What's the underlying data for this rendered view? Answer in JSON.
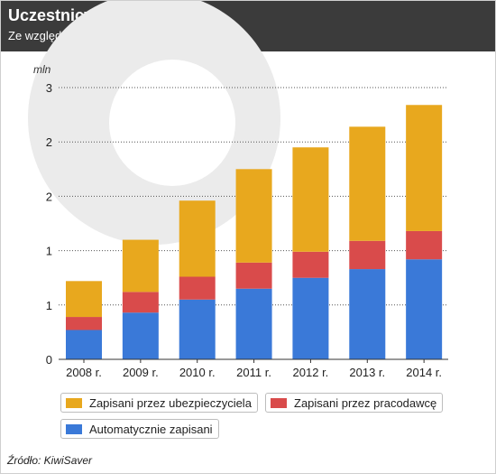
{
  "header": {
    "title": "Uczestnicy KiwiSaver",
    "subtitle": "Ze względu na sposób dołączenia"
  },
  "colors": {
    "header_bg": "#3b3b3b",
    "watermark": "#ebebeb",
    "insurer": "#e8a81e",
    "employer": "#d94b4b",
    "auto": "#3a79d8"
  },
  "chart_data": {
    "type": "bar",
    "stacked": true,
    "unit_label": "mln",
    "categories": [
      "2008 r.",
      "2009 r.",
      "2010 r.",
      "2011 r.",
      "2012 r.",
      "2013 r.",
      "2014 r."
    ],
    "y_ticks": [
      "0",
      "1",
      "1",
      "2",
      "2",
      "3"
    ],
    "ylim": [
      0,
      2.5
    ],
    "grid": true,
    "legend_position": "bottom",
    "series": [
      {
        "name": "Automatycznie zapisani",
        "color": "#3a79d8",
        "values": [
          0.27,
          0.43,
          0.55,
          0.65,
          0.75,
          0.83,
          0.92
        ]
      },
      {
        "name": "Zapisani przez pracodawcę",
        "color": "#d94b4b",
        "values": [
          0.12,
          0.19,
          0.21,
          0.24,
          0.24,
          0.26,
          0.26
        ]
      },
      {
        "name": "Zapisani przez ubezpieczyciela",
        "color": "#e8a81e",
        "values": [
          0.33,
          0.48,
          0.7,
          0.86,
          0.96,
          1.05,
          1.16
        ]
      }
    ]
  },
  "legend": {
    "insurer": "Zapisani przez ubezpieczyciela",
    "employer": "Zapisani przez pracodawcę",
    "auto": "Automatycznie zapisani"
  },
  "source": "Źródło: KiwiSaver"
}
